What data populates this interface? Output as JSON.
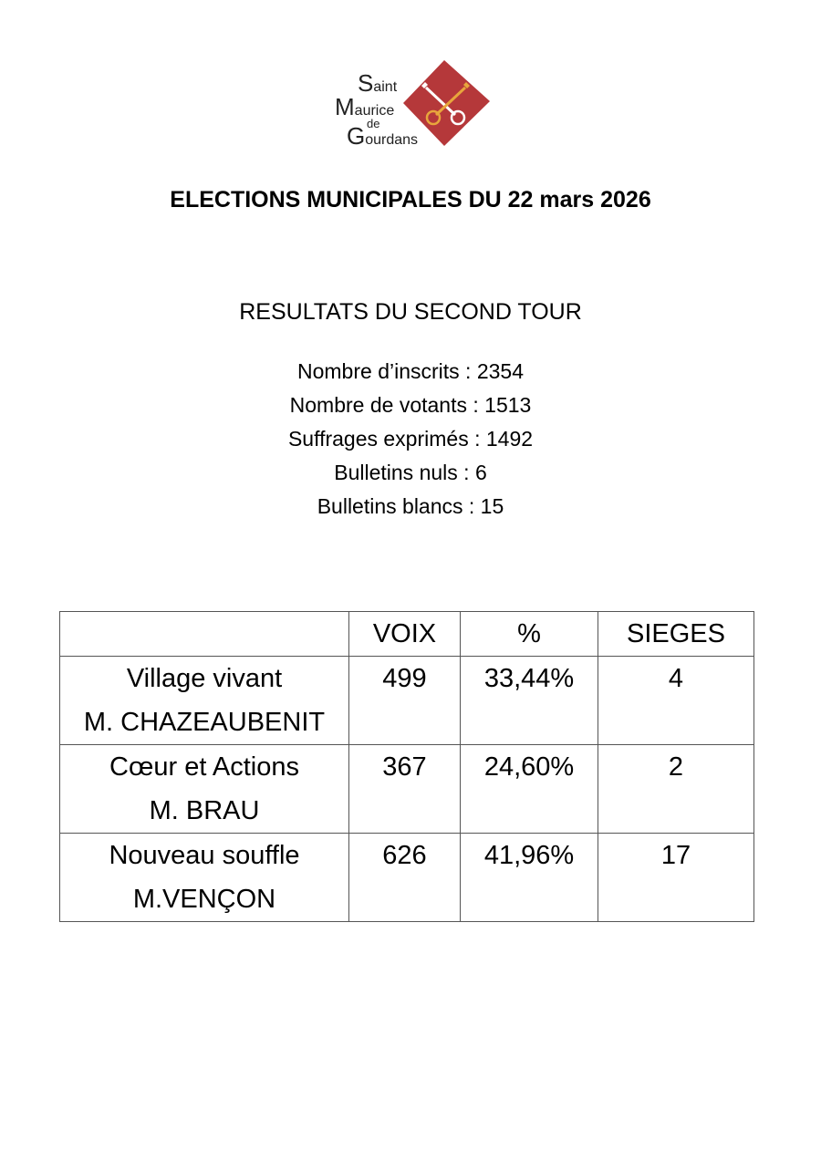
{
  "logo": {
    "text_lines": [
      "Saint",
      "Maurice",
      "de",
      "Gourdans"
    ],
    "colors": {
      "diamond": "#b5383a",
      "key_left": "#ffffff",
      "key_right": "#e8a63c"
    }
  },
  "title": "ELECTIONS MUNICIPALES DU 22 mars 2026",
  "subtitle": "RESULTATS DU SECOND TOUR",
  "stats": [
    "Nombre d’inscrits : 2354",
    "Nombre de votants : 1513",
    "Suffrages exprimés : 1492",
    "Bulletins nuls : 6",
    "Bulletins blancs : 15"
  ],
  "table": {
    "headers": [
      "",
      "VOIX",
      "%",
      "SIEGES"
    ],
    "rows": [
      {
        "list": "Village vivant",
        "candidate": "M. CHAZEAUBENIT",
        "voix": "499",
        "pct": "33,44%",
        "sieges": "4"
      },
      {
        "list": "Cœur et Actions",
        "candidate": "M. BRAU",
        "voix": "367",
        "pct": "24,60%",
        "sieges": "2"
      },
      {
        "list": "Nouveau souffle",
        "candidate": "M.VENÇON",
        "voix": "626",
        "pct": "41,96%",
        "sieges": "17"
      }
    ]
  }
}
